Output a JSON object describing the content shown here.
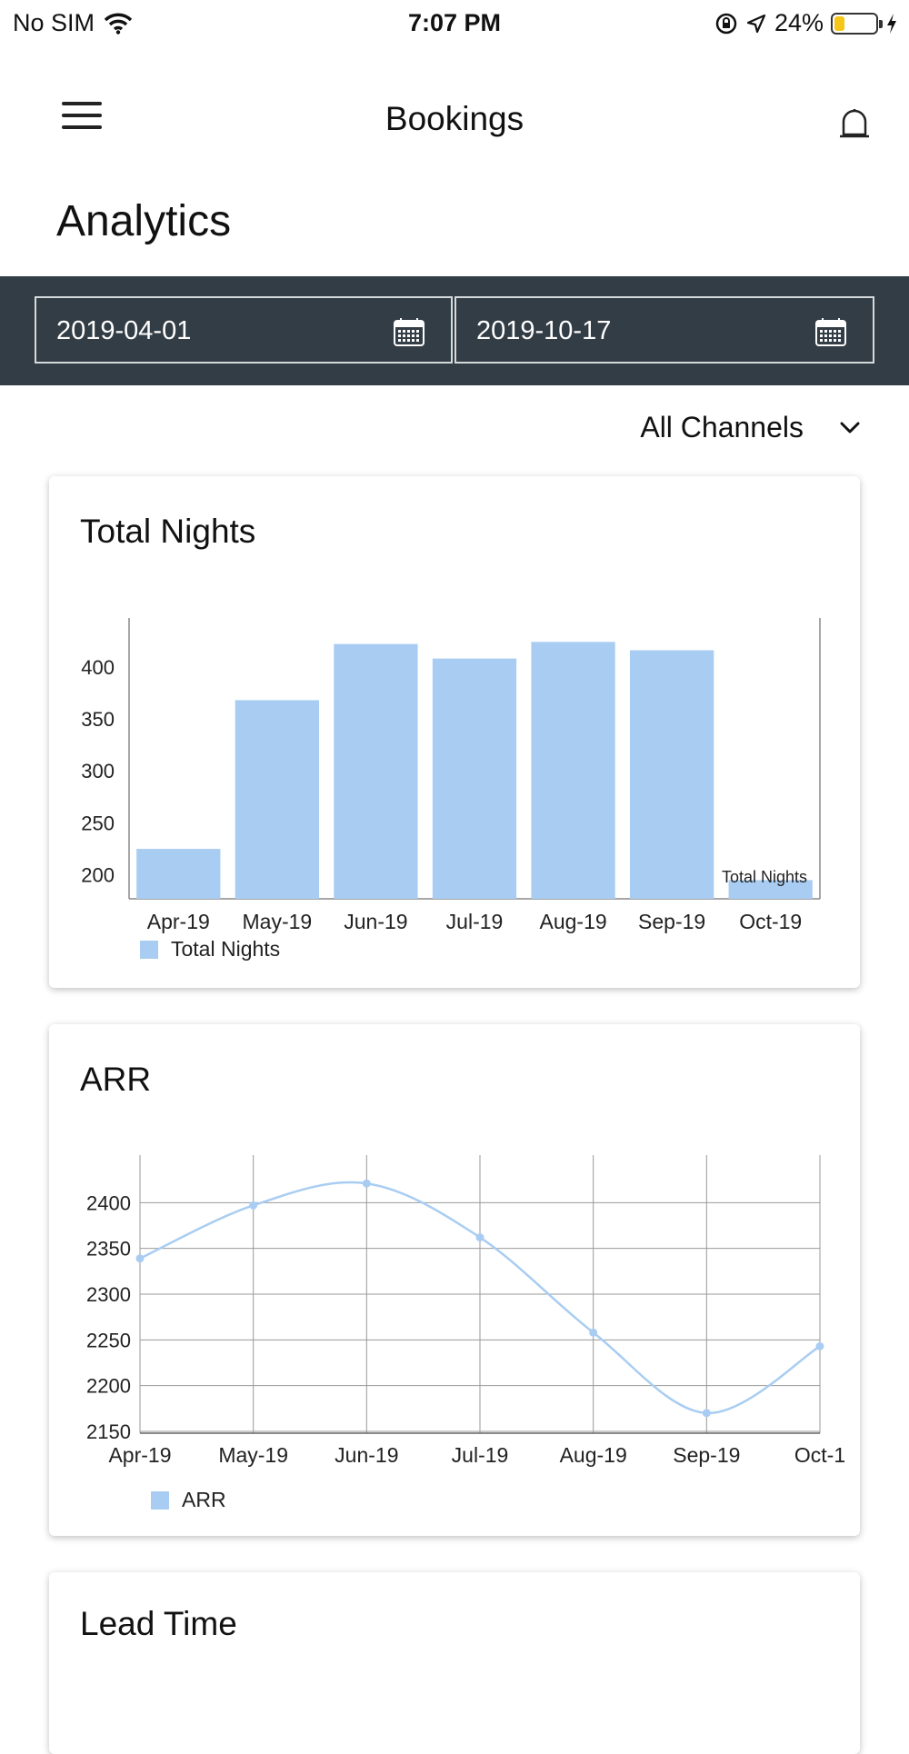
{
  "status_bar": {
    "carrier": "No SIM",
    "time": "7:07 PM",
    "battery_percent": "24%",
    "battery_level": 0.24
  },
  "nav": {
    "title": "Bookings"
  },
  "page_title": "Analytics",
  "date_range": {
    "start": "2019-04-01",
    "end": "2019-10-17"
  },
  "channel_filter": {
    "selected": "All Channels"
  },
  "colors": {
    "accent_bar": "#a9cdf2",
    "header_dark": "#333d45"
  },
  "cards": {
    "total_nights_title": "Total Nights",
    "arr_title": "ARR",
    "lead_time_title": "Lead Time"
  },
  "chart_data": [
    {
      "type": "bar",
      "title": "Total Nights",
      "categories": [
        "Apr-19",
        "May-19",
        "Jun-19",
        "Jul-19",
        "Aug-19",
        "Sep-19",
        "Oct-19"
      ],
      "series": [
        {
          "name": "Total Nights",
          "values": [
            225,
            368,
            422,
            408,
            424,
            416,
            195
          ]
        }
      ],
      "ylim": [
        177,
        447
      ],
      "yticks": [
        200,
        250,
        300,
        350,
        400
      ],
      "annotation": "Total Nights",
      "legend": "bottom-left"
    },
    {
      "type": "line",
      "title": "ARR",
      "x": [
        "Apr-19",
        "May-19",
        "Jun-19",
        "Jul-19",
        "Aug-19",
        "Sep-19",
        "Oct-1"
      ],
      "series": [
        {
          "name": "ARR",
          "values": [
            2339,
            2397,
            2421,
            2362,
            2258,
            2170,
            2243
          ]
        }
      ],
      "ylim": [
        2148,
        2452
      ],
      "yticks": [
        2150,
        2200,
        2250,
        2300,
        2350,
        2400
      ],
      "grid": true,
      "legend": "bottom-left"
    }
  ]
}
